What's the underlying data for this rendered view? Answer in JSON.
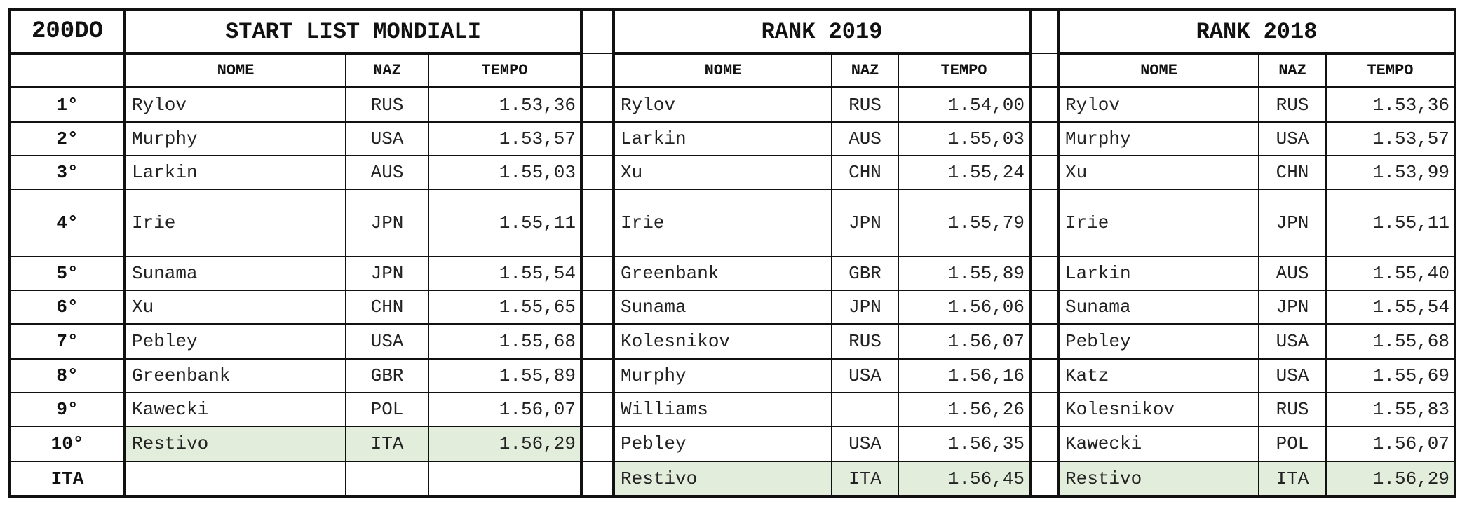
{
  "corner_label": "200DO",
  "sections": {
    "start": {
      "title": "START LIST MONDIALI"
    },
    "rank2019": {
      "title": "RANK 2019"
    },
    "rank2018": {
      "title": "RANK 2018"
    }
  },
  "headers": {
    "nome": "NOME",
    "naz": "NAZ",
    "tempo": "TEMPO"
  },
  "highlight_color": "#e3eddb",
  "rows": [
    {
      "pos": "1°",
      "start": {
        "nome": "Rylov",
        "naz": "RUS",
        "tempo": "1.53,36"
      },
      "r2019": {
        "nome": "Rylov",
        "naz": "RUS",
        "tempo": "1.54,00"
      },
      "r2018": {
        "nome": "Rylov",
        "naz": "RUS",
        "tempo": "1.53,36"
      }
    },
    {
      "pos": "2°",
      "start": {
        "nome": "Murphy",
        "naz": "USA",
        "tempo": "1.53,57"
      },
      "r2019": {
        "nome": "Larkin",
        "naz": "AUS",
        "tempo": "1.55,03"
      },
      "r2018": {
        "nome": "Murphy",
        "naz": "USA",
        "tempo": "1.53,57"
      }
    },
    {
      "pos": "3°",
      "start": {
        "nome": "Larkin",
        "naz": "AUS",
        "tempo": "1.55,03"
      },
      "r2019": {
        "nome": "Xu",
        "naz": "CHN",
        "tempo": "1.55,24"
      },
      "r2018": {
        "nome": "Xu",
        "naz": "CHN",
        "tempo": "1.53,99"
      }
    },
    {
      "pos": "4°",
      "start": {
        "nome": "Irie",
        "naz": "JPN",
        "tempo": "1.55,11"
      },
      "r2019": {
        "nome": "Irie",
        "naz": "JPN",
        "tempo": "1.55,79"
      },
      "r2018": {
        "nome": "Irie",
        "naz": "JPN",
        "tempo": "1.55,11"
      }
    },
    {
      "pos": "5°",
      "start": {
        "nome": "Sunama",
        "naz": "JPN",
        "tempo": "1.55,54"
      },
      "r2019": {
        "nome": "Greenbank",
        "naz": "GBR",
        "tempo": "1.55,89"
      },
      "r2018": {
        "nome": "Larkin",
        "naz": "AUS",
        "tempo": "1.55,40"
      }
    },
    {
      "pos": "6°",
      "start": {
        "nome": "Xu",
        "naz": "CHN",
        "tempo": "1.55,65"
      },
      "r2019": {
        "nome": "Sunama",
        "naz": "JPN",
        "tempo": "1.56,06"
      },
      "r2018": {
        "nome": "Sunama",
        "naz": "JPN",
        "tempo": "1.55,54"
      }
    },
    {
      "pos": "7°",
      "start": {
        "nome": "Pebley",
        "naz": "USA",
        "tempo": "1.55,68"
      },
      "r2019": {
        "nome": "Kolesnikov",
        "naz": "RUS",
        "tempo": "1.56,07"
      },
      "r2018": {
        "nome": "Pebley",
        "naz": "USA",
        "tempo": "1.55,68"
      }
    },
    {
      "pos": "8°",
      "start": {
        "nome": "Greenbank",
        "naz": "GBR",
        "tempo": "1.55,89"
      },
      "r2019": {
        "nome": "Murphy",
        "naz": "USA",
        "tempo": "1.56,16"
      },
      "r2018": {
        "nome": "Katz",
        "naz": "USA",
        "tempo": "1.55,69"
      }
    },
    {
      "pos": "9°",
      "start": {
        "nome": "Kawecki",
        "naz": "POL",
        "tempo": "1.56,07"
      },
      "r2019": {
        "nome": "Williams",
        "naz": "",
        "tempo": "1.56,26"
      },
      "r2018": {
        "nome": "Kolesnikov",
        "naz": "RUS",
        "tempo": "1.55,83"
      }
    },
    {
      "pos": "10°",
      "start": {
        "nome": "Restivo",
        "naz": "ITA",
        "tempo": "1.56,29",
        "highlight": true
      },
      "r2019": {
        "nome": "Pebley",
        "naz": "USA",
        "tempo": "1.56,35"
      },
      "r2018": {
        "nome": "Kawecki",
        "naz": "POL",
        "tempo": "1.56,07"
      }
    },
    {
      "pos": "ITA",
      "start": {
        "nome": "",
        "naz": "",
        "tempo": ""
      },
      "r2019": {
        "nome": "Restivo",
        "naz": "ITA",
        "tempo": "1.56,45",
        "highlight": true
      },
      "r2018": {
        "nome": "Restivo",
        "naz": "ITA",
        "tempo": "1.56,29",
        "highlight": true
      }
    }
  ]
}
